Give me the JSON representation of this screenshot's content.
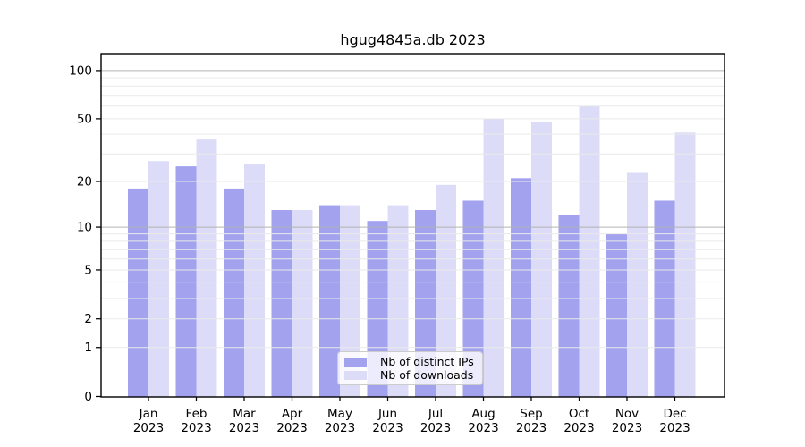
{
  "title": "hgug4845a.db 2023",
  "chart_data": {
    "type": "bar",
    "title": "hgug4845a.db 2023",
    "categories": [
      "Jan",
      "Feb",
      "Mar",
      "Apr",
      "May",
      "Jun",
      "Jul",
      "Aug",
      "Sep",
      "Oct",
      "Nov",
      "Dec"
    ],
    "category_line2": "2023",
    "series": [
      {
        "name": "Nb of distinct IPs",
        "color": "#a2a2ef",
        "values": [
          18,
          25,
          18,
          13,
          14,
          11,
          13,
          15,
          21,
          12,
          9,
          15
        ]
      },
      {
        "name": "Nb of downloads",
        "color": "#dcdcf8",
        "values": [
          27,
          37,
          26,
          13,
          14,
          14,
          19,
          50,
          48,
          60,
          23,
          41
        ]
      }
    ],
    "y_axis": {
      "scale": "log10(1+x)",
      "tick_values": [
        100,
        50,
        20,
        10,
        5,
        2,
        1,
        0
      ],
      "tick_labels": [
        "100",
        "50",
        "20",
        "10",
        "5",
        "2",
        "1",
        "0"
      ],
      "major_grid_values": [
        10,
        100
      ],
      "minor_grid_values": [
        1,
        2,
        3,
        4,
        5,
        6,
        7,
        8,
        9,
        20,
        30,
        40,
        50,
        60,
        70,
        80,
        90
      ]
    },
    "xlabel": "",
    "ylabel": "",
    "grid": true,
    "legend_position": "bottom-center-inside",
    "colors": {
      "bar_ips": "#a2a2ef",
      "bar_downloads": "#dcdcf8",
      "major_grid": "#b3b3b3",
      "minor_grid": "#eaeaea",
      "axis": "#000000",
      "background": "#ffffff"
    }
  }
}
